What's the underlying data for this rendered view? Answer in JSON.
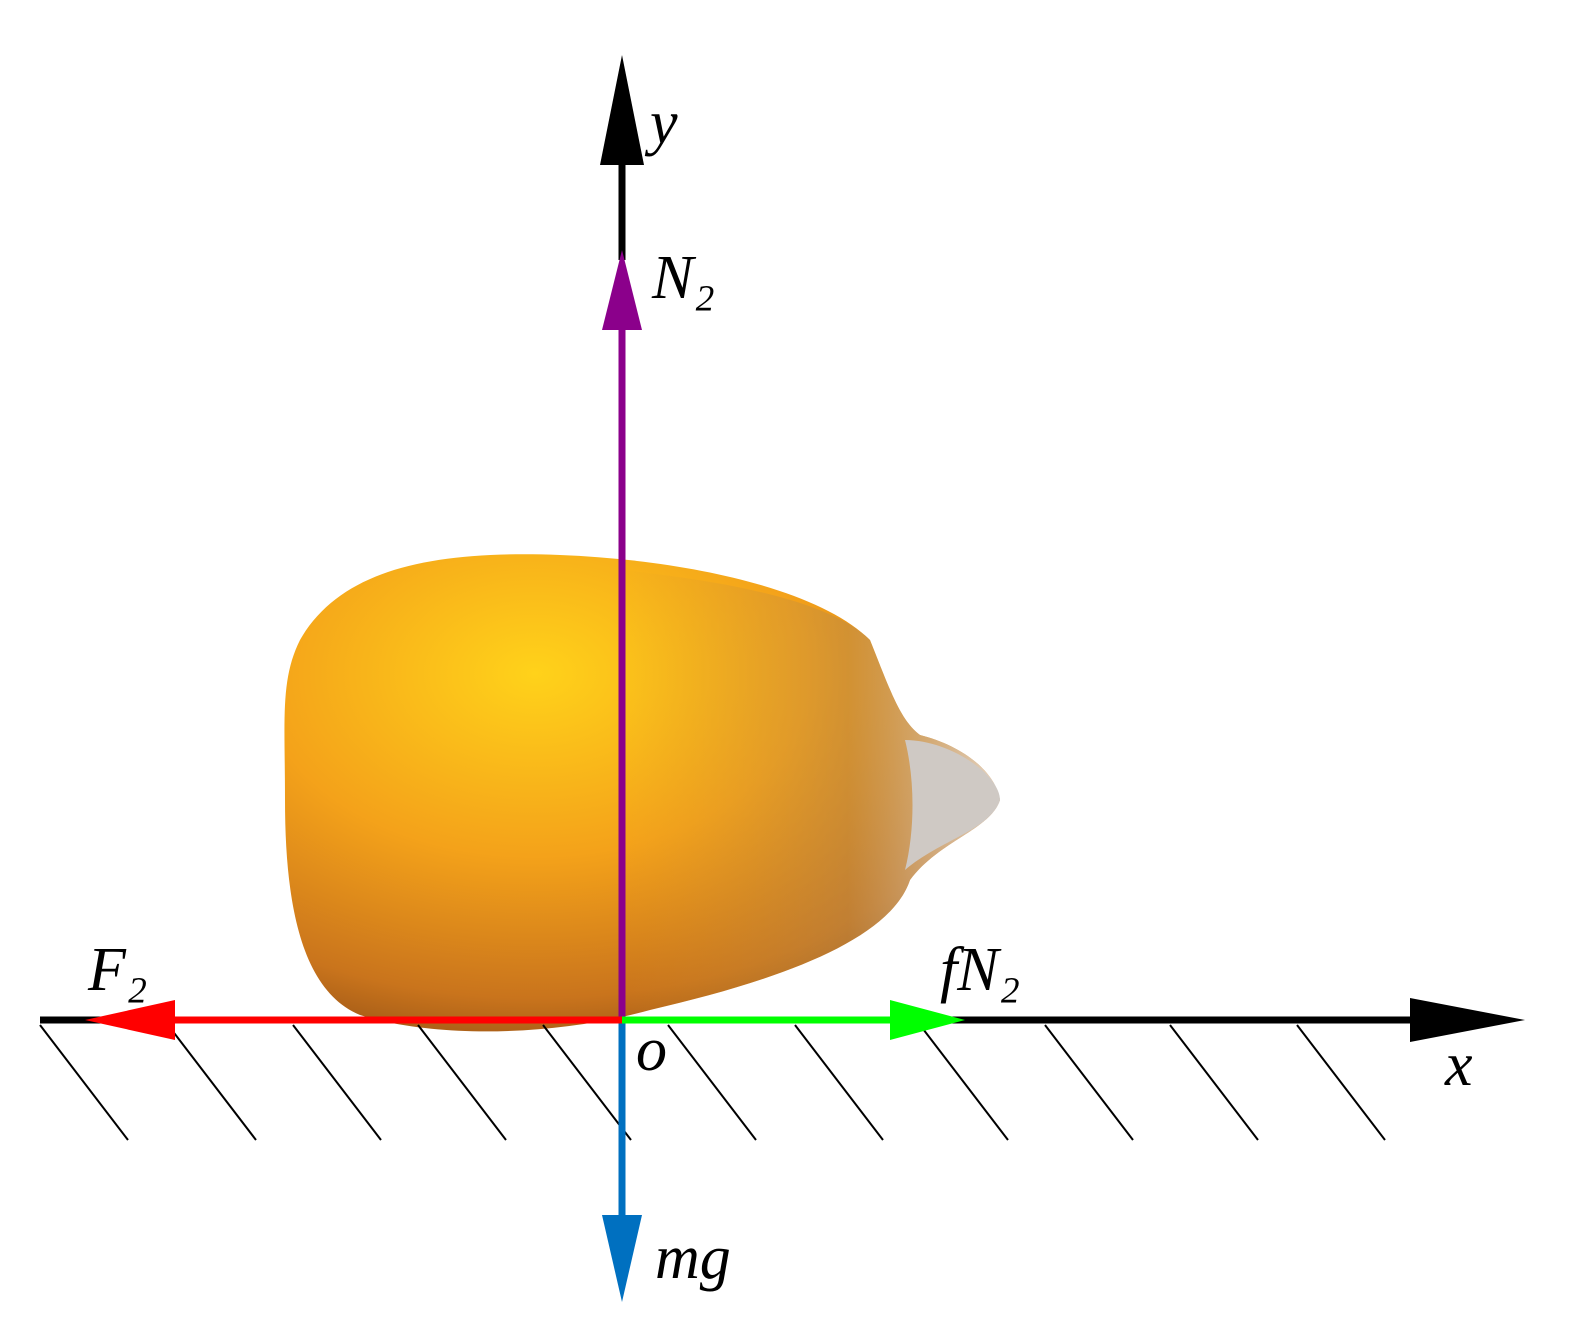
{
  "labels": {
    "y_axis": "y",
    "normal_force": "N₂",
    "applied_force": "F₂",
    "friction_force": "fN₂",
    "origin": "o",
    "x_axis": "x",
    "gravity": "mg"
  }
}
